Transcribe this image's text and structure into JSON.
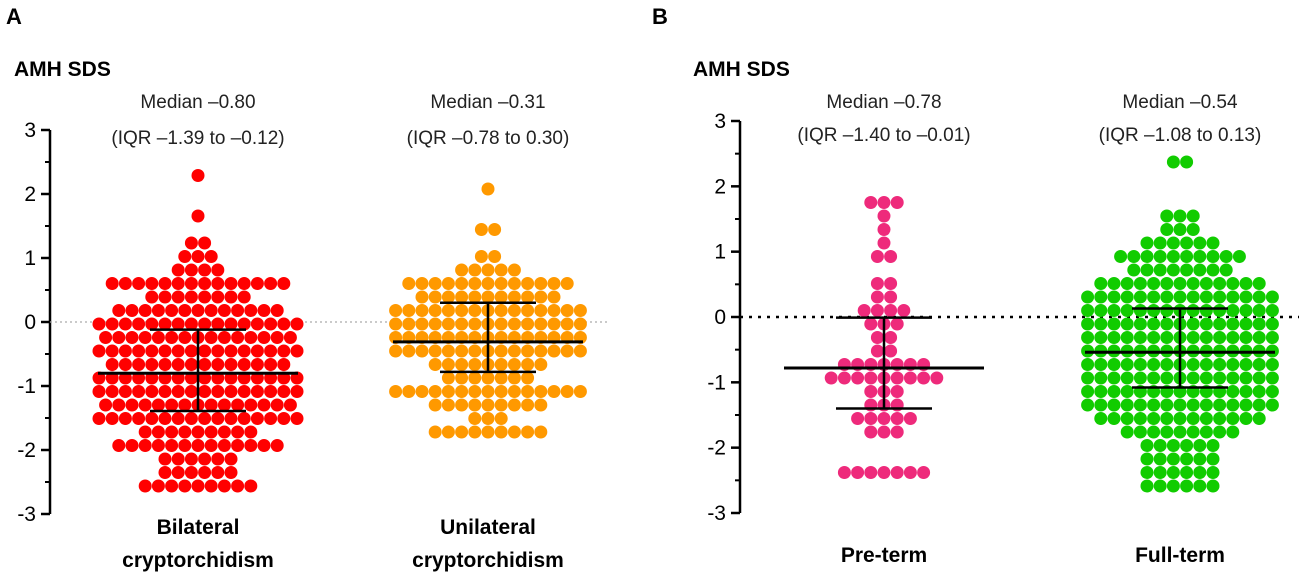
{
  "chart_data": [
    {
      "type": "scatter",
      "subtype": "dot-plot with median and IQR",
      "panel": "A",
      "ylabel": "AMH SDS",
      "ylim": [
        -3,
        3
      ],
      "yticks": [
        "3",
        "2",
        "1",
        "0",
        "-1",
        "-2",
        "-3"
      ],
      "reference_line": 0,
      "groups": [
        {
          "name_lines": [
            "Bilateral",
            "cryptorchidism"
          ],
          "color": "#ff0000",
          "median_label": "Median –0.80",
          "iqr_label": "(IQR –1.39 to –0.12)",
          "median": -0.8,
          "q1": -1.39,
          "q3": -0.12,
          "min": -2.5,
          "max": 2.35,
          "n": 230
        },
        {
          "name_lines": [
            "Unilateral",
            "cryptorchidism"
          ],
          "color": "#ff9900",
          "median_label": "Median –0.31",
          "iqr_label": "(IQR –0.78 to 0.30)",
          "median": -0.31,
          "q1": -0.78,
          "q3": 0.3,
          "min": -1.8,
          "max": 2.1,
          "n": 160
        }
      ]
    },
    {
      "type": "scatter",
      "subtype": "dot-plot with median and IQR",
      "panel": "B",
      "ylabel": "AMH SDS",
      "ylim": [
        -3,
        3
      ],
      "yticks": [
        "3",
        "2",
        "1",
        "0",
        "-1",
        "-2",
        "-3"
      ],
      "reference_line": 0,
      "groups": [
        {
          "name_lines": [
            "Pre-term"
          ],
          "color": "#ee2a7b",
          "median_label": "Median –0.78",
          "iqr_label": "(IQR –1.40 to –0.01)",
          "median": -0.78,
          "q1": -1.4,
          "q3": -0.01,
          "min": -2.45,
          "max": 1.82,
          "n": 60
        },
        {
          "name_lines": [
            "Full-term"
          ],
          "color": "#11cc00",
          "median_label": "Median –0.54",
          "iqr_label": "(IQR –1.08 to 0.13)",
          "median": -0.54,
          "q1": -1.08,
          "q3": 0.13,
          "min": -2.5,
          "max": 2.35,
          "n": 330
        }
      ]
    }
  ]
}
